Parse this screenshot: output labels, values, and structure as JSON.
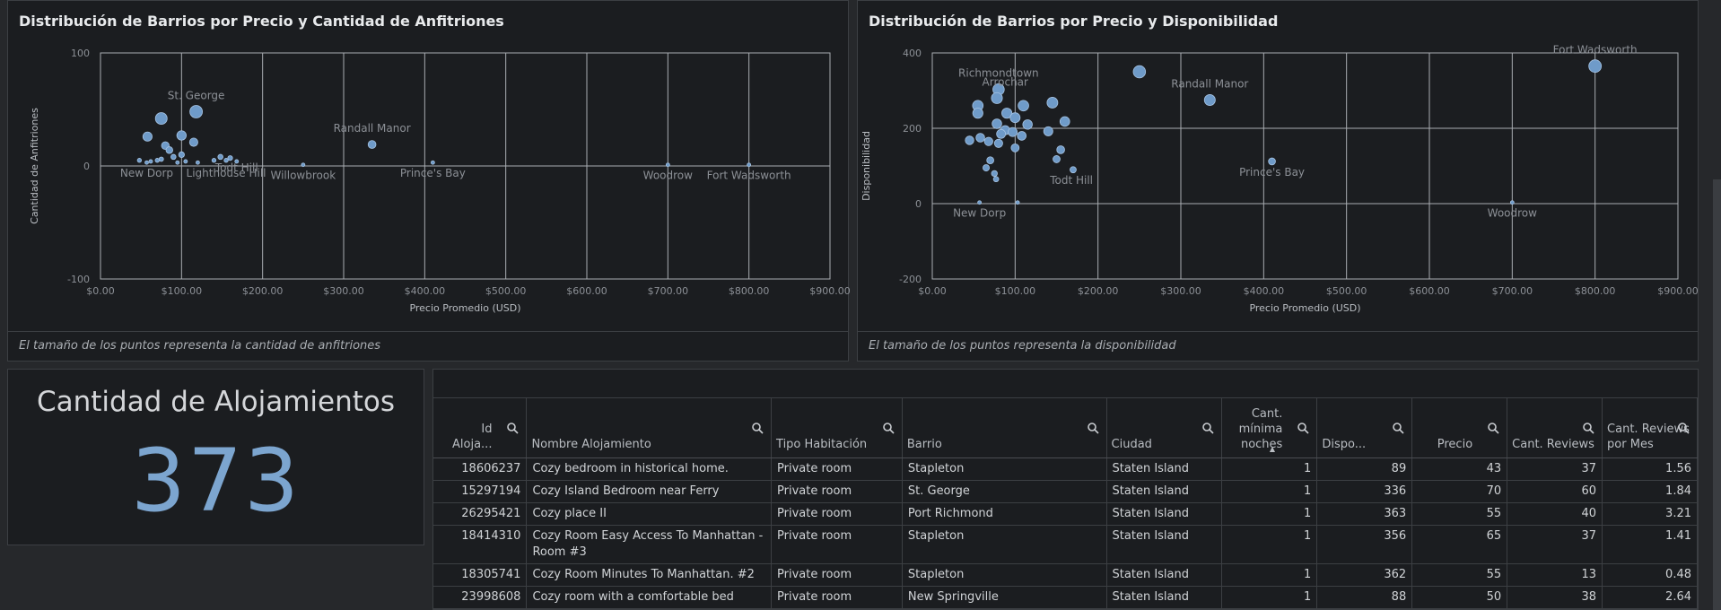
{
  "charts": {
    "left": {
      "title": "Distribución de Barrios por Precio y Cantidad de Anfitriones",
      "footnote": "El tamaño de los puntos representa la cantidad de anfitriones"
    },
    "right": {
      "title": "Distribución de Barrios por Precio y Disponibilidad",
      "footnote": "El tamaño de los puntos representa la disponibilidad"
    }
  },
  "chart_data": [
    {
      "type": "scatter",
      "title": "Distribución de Barrios por Precio y Cantidad de Anfitriones",
      "xlabel": "Precio Promedio (USD)",
      "ylabel": "Cantidad de Anfitriones",
      "xlim": [
        0,
        900
      ],
      "ylim": [
        -100,
        100
      ],
      "xticks": [
        "$0.00",
        "$100.00",
        "$200.00",
        "$300.00",
        "$400.00",
        "$500.00",
        "$600.00",
        "$700.00",
        "$800.00",
        "$900.00"
      ],
      "yticks": [
        "100",
        "0",
        "-100"
      ],
      "grid": true,
      "size_meaning": "cantidad de anfitriones",
      "labels": [
        {
          "text": "St. George",
          "x": 118,
          "y": 48
        },
        {
          "text": "Todt Hill",
          "x": 168,
          "y": 8
        },
        {
          "text": "Willowbrook",
          "x": 250,
          "y": 1
        },
        {
          "text": "Randall Manor",
          "x": 335,
          "y": 19
        },
        {
          "text": "Prince's Bay",
          "x": 410,
          "y": 3
        },
        {
          "text": "Woodrow",
          "x": 700,
          "y": 1
        },
        {
          "text": "Fort Wadsworth",
          "x": 800,
          "y": 1
        },
        {
          "text": "New Dorp",
          "x": 57,
          "y": 3
        },
        {
          "text": "Lighthouse Hill",
          "x": 155,
          "y": 3
        }
      ],
      "points": [
        {
          "x": 118,
          "y": 48,
          "s": 48
        },
        {
          "x": 75,
          "y": 42,
          "s": 42
        },
        {
          "x": 58,
          "y": 26,
          "s": 26
        },
        {
          "x": 100,
          "y": 27,
          "s": 27
        },
        {
          "x": 115,
          "y": 21,
          "s": 21
        },
        {
          "x": 80,
          "y": 18,
          "s": 18
        },
        {
          "x": 85,
          "y": 14,
          "s": 14
        },
        {
          "x": 100,
          "y": 10,
          "s": 10
        },
        {
          "x": 90,
          "y": 8,
          "s": 8
        },
        {
          "x": 75,
          "y": 6,
          "s": 6
        },
        {
          "x": 48,
          "y": 5,
          "s": 5
        },
        {
          "x": 62,
          "y": 4,
          "s": 4
        },
        {
          "x": 70,
          "y": 5,
          "s": 5
        },
        {
          "x": 95,
          "y": 3,
          "s": 3
        },
        {
          "x": 105,
          "y": 4,
          "s": 4
        },
        {
          "x": 140,
          "y": 5,
          "s": 5
        },
        {
          "x": 148,
          "y": 8,
          "s": 8
        },
        {
          "x": 155,
          "y": 5,
          "s": 5
        },
        {
          "x": 160,
          "y": 7,
          "s": 7
        },
        {
          "x": 168,
          "y": 4,
          "s": 4
        },
        {
          "x": 57,
          "y": 3,
          "s": 3
        },
        {
          "x": 120,
          "y": 3,
          "s": 3
        },
        {
          "x": 250,
          "y": 1,
          "s": 1
        },
        {
          "x": 335,
          "y": 19,
          "s": 19
        },
        {
          "x": 410,
          "y": 3,
          "s": 3
        },
        {
          "x": 700,
          "y": 1,
          "s": 1
        },
        {
          "x": 800,
          "y": 1,
          "s": 1
        }
      ]
    },
    {
      "type": "scatter",
      "title": "Distribución de Barrios por Precio y Disponibilidad",
      "xlabel": "Precio Promedio (USD)",
      "ylabel": "Disponibilidad",
      "xlim": [
        0,
        900
      ],
      "ylim": [
        -200,
        400
      ],
      "xticks": [
        "$0.00",
        "$100.00",
        "$200.00",
        "$300.00",
        "$400.00",
        "$500.00",
        "$600.00",
        "$700.00",
        "$800.00",
        "$900.00"
      ],
      "yticks": [
        "400",
        "200",
        "0",
        "-200"
      ],
      "grid": true,
      "size_meaning": "disponibilidad",
      "labels": [
        {
          "text": "Richmondtown",
          "x": 80,
          "y": 303
        },
        {
          "text": "Arrochar",
          "x": 88,
          "y": 280
        },
        {
          "text": "Randall Manor",
          "x": 335,
          "y": 275
        },
        {
          "text": "Fort Wadsworth",
          "x": 800,
          "y": 365
        },
        {
          "text": "Prince's Bay",
          "x": 410,
          "y": 112
        },
        {
          "text": "Todt Hill",
          "x": 168,
          "y": 90
        },
        {
          "text": "Woodrow",
          "x": 700,
          "y": 3
        },
        {
          "text": "New Dorp",
          "x": 57,
          "y": 3
        }
      ],
      "points": [
        {
          "x": 800,
          "y": 365,
          "s": 365
        },
        {
          "x": 250,
          "y": 350,
          "s": 350
        },
        {
          "x": 335,
          "y": 275,
          "s": 275
        },
        {
          "x": 80,
          "y": 303,
          "s": 303
        },
        {
          "x": 78,
          "y": 280,
          "s": 280
        },
        {
          "x": 55,
          "y": 260,
          "s": 260
        },
        {
          "x": 110,
          "y": 260,
          "s": 260
        },
        {
          "x": 145,
          "y": 268,
          "s": 268
        },
        {
          "x": 55,
          "y": 240,
          "s": 240
        },
        {
          "x": 90,
          "y": 240,
          "s": 240
        },
        {
          "x": 100,
          "y": 228,
          "s": 228
        },
        {
          "x": 78,
          "y": 212,
          "s": 212
        },
        {
          "x": 115,
          "y": 210,
          "s": 210
        },
        {
          "x": 160,
          "y": 218,
          "s": 218
        },
        {
          "x": 88,
          "y": 195,
          "s": 195
        },
        {
          "x": 97,
          "y": 190,
          "s": 190
        },
        {
          "x": 83,
          "y": 185,
          "s": 185
        },
        {
          "x": 140,
          "y": 192,
          "s": 192
        },
        {
          "x": 108,
          "y": 180,
          "s": 180
        },
        {
          "x": 58,
          "y": 175,
          "s": 175
        },
        {
          "x": 45,
          "y": 168,
          "s": 168
        },
        {
          "x": 68,
          "y": 165,
          "s": 165
        },
        {
          "x": 80,
          "y": 160,
          "s": 160
        },
        {
          "x": 100,
          "y": 148,
          "s": 148
        },
        {
          "x": 155,
          "y": 143,
          "s": 143
        },
        {
          "x": 70,
          "y": 115,
          "s": 115
        },
        {
          "x": 150,
          "y": 118,
          "s": 118
        },
        {
          "x": 65,
          "y": 95,
          "s": 95
        },
        {
          "x": 75,
          "y": 80,
          "s": 80
        },
        {
          "x": 170,
          "y": 90,
          "s": 90
        },
        {
          "x": 77,
          "y": 65,
          "s": 65
        },
        {
          "x": 410,
          "y": 112,
          "s": 112
        },
        {
          "x": 57,
          "y": 3,
          "s": 3
        },
        {
          "x": 103,
          "y": 3,
          "s": 3
        },
        {
          "x": 700,
          "y": 3,
          "s": 3
        }
      ]
    }
  ],
  "kpi": {
    "title": "Cantidad de Alojamientos",
    "value": "373"
  },
  "table": {
    "columns": [
      {
        "label": "Id Aloja...",
        "align": "right"
      },
      {
        "label": "Nombre Alojamiento",
        "align": "left"
      },
      {
        "label": "Tipo Habitación",
        "align": "left"
      },
      {
        "label": "Barrio",
        "align": "left"
      },
      {
        "label": "Ciudad",
        "align": "left"
      },
      {
        "label": "Cant. mínima noches",
        "align": "right",
        "sorted": true
      },
      {
        "label": "Dispo...",
        "align": "left"
      },
      {
        "label": "Precio",
        "align": "right"
      },
      {
        "label": "Cant. Reviews",
        "align": "left"
      },
      {
        "label": "Cant. Reviews por Mes",
        "align": "left"
      }
    ],
    "rows": [
      [
        "18606237",
        "Cozy bedroom in historical home.",
        "Private room",
        "Stapleton",
        "Staten Island",
        "1",
        "89",
        "43",
        "37",
        "1.56"
      ],
      [
        "15297194",
        "Cozy Island Bedroom near Ferry",
        "Private room",
        "St. George",
        "Staten Island",
        "1",
        "336",
        "70",
        "60",
        "1.84"
      ],
      [
        "26295421",
        "Cozy place II",
        "Private room",
        "Port Richmond",
        "Staten Island",
        "1",
        "363",
        "55",
        "40",
        "3.21"
      ],
      [
        "18414310",
        "Cozy Room Easy Access To Manhattan - Room #3",
        "Private room",
        "Stapleton",
        "Staten Island",
        "1",
        "356",
        "65",
        "37",
        "1.41"
      ],
      [
        "18305741",
        "Cozy Room Minutes To Manhattan. #2",
        "Private room",
        "Stapleton",
        "Staten Island",
        "1",
        "362",
        "55",
        "13",
        "0.48"
      ],
      [
        "23998608",
        "Cozy room with a comfortable bed",
        "Private room",
        "New Springville",
        "Staten Island",
        "1",
        "88",
        "50",
        "38",
        "2.64"
      ]
    ]
  },
  "colors": {
    "background": "#26282b",
    "panel": "#1b1d20",
    "border": "#3c3f43",
    "point": "#7ca5cf",
    "text": "#c9ccd0"
  }
}
